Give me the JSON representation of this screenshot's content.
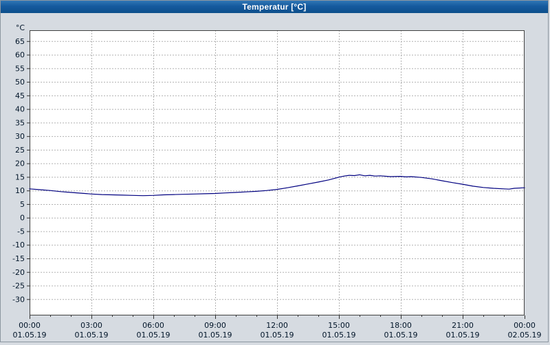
{
  "window": {
    "title": "Temperatur [°C]"
  },
  "colors": {
    "titlebar": "#155a9e",
    "page_bg": "#d6dbe1",
    "plot_bg": "#ffffff",
    "plot_border": "#404040",
    "grid": "#b0b0b0",
    "axis_text": "#001428",
    "line": "#000080"
  },
  "chart_data": {
    "type": "line",
    "title": "Temperatur [°C]",
    "unit_label": "°C",
    "legend_position": "none",
    "grid": "dashed",
    "xlim": [
      0,
      24
    ],
    "ylim": [
      -36,
      69
    ],
    "y_ticks": [
      65,
      60,
      55,
      50,
      45,
      40,
      35,
      30,
      25,
      20,
      15,
      10,
      5,
      0,
      -5,
      -10,
      -15,
      -20,
      -25,
      -30
    ],
    "x_ticks": [
      {
        "hour": 0,
        "time": "00:00",
        "date": "01.05.19"
      },
      {
        "hour": 3,
        "time": "03:00",
        "date": "01.05.19"
      },
      {
        "hour": 6,
        "time": "06:00",
        "date": "01.05.19"
      },
      {
        "hour": 9,
        "time": "09:00",
        "date": "01.05.19"
      },
      {
        "hour": 12,
        "time": "12:00",
        "date": "01.05.19"
      },
      {
        "hour": 15,
        "time": "15:00",
        "date": "01.05.19"
      },
      {
        "hour": 18,
        "time": "18:00",
        "date": "01.05.19"
      },
      {
        "hour": 21,
        "time": "21:00",
        "date": "01.05.19"
      },
      {
        "hour": 24,
        "time": "00:00",
        "date": "02.05.19"
      }
    ],
    "series": [
      {
        "name": "Temperatur",
        "points": [
          [
            0,
            10.6
          ],
          [
            0.5,
            10.3
          ],
          [
            1,
            10.0
          ],
          [
            1.5,
            9.6
          ],
          [
            2,
            9.3
          ],
          [
            2.5,
            9.0
          ],
          [
            3,
            8.7
          ],
          [
            3.5,
            8.5
          ],
          [
            4,
            8.4
          ],
          [
            4.5,
            8.3
          ],
          [
            5,
            8.2
          ],
          [
            5.5,
            8.1
          ],
          [
            6,
            8.2
          ],
          [
            6.5,
            8.4
          ],
          [
            7,
            8.5
          ],
          [
            7.5,
            8.6
          ],
          [
            8,
            8.7
          ],
          [
            8.5,
            8.8
          ],
          [
            9,
            8.9
          ],
          [
            9.5,
            9.1
          ],
          [
            10,
            9.3
          ],
          [
            10.5,
            9.5
          ],
          [
            11,
            9.7
          ],
          [
            11.5,
            10.0
          ],
          [
            12,
            10.4
          ],
          [
            12.5,
            11.0
          ],
          [
            13,
            11.7
          ],
          [
            13.5,
            12.4
          ],
          [
            14,
            13.1
          ],
          [
            14.5,
            13.9
          ],
          [
            15,
            14.9
          ],
          [
            15.25,
            15.3
          ],
          [
            15.5,
            15.6
          ],
          [
            15.75,
            15.5
          ],
          [
            16,
            15.8
          ],
          [
            16.25,
            15.4
          ],
          [
            16.5,
            15.6
          ],
          [
            16.75,
            15.3
          ],
          [
            17,
            15.4
          ],
          [
            17.5,
            15.1
          ],
          [
            18,
            15.2
          ],
          [
            18.25,
            15.0
          ],
          [
            18.5,
            15.1
          ],
          [
            19,
            14.8
          ],
          [
            19.5,
            14.3
          ],
          [
            20,
            13.6
          ],
          [
            20.5,
            12.9
          ],
          [
            21,
            12.3
          ],
          [
            21.5,
            11.6
          ],
          [
            22,
            11.1
          ],
          [
            22.5,
            10.8
          ],
          [
            23,
            10.6
          ],
          [
            23.25,
            10.5
          ],
          [
            23.5,
            10.8
          ],
          [
            24,
            11.0
          ]
        ]
      }
    ]
  }
}
